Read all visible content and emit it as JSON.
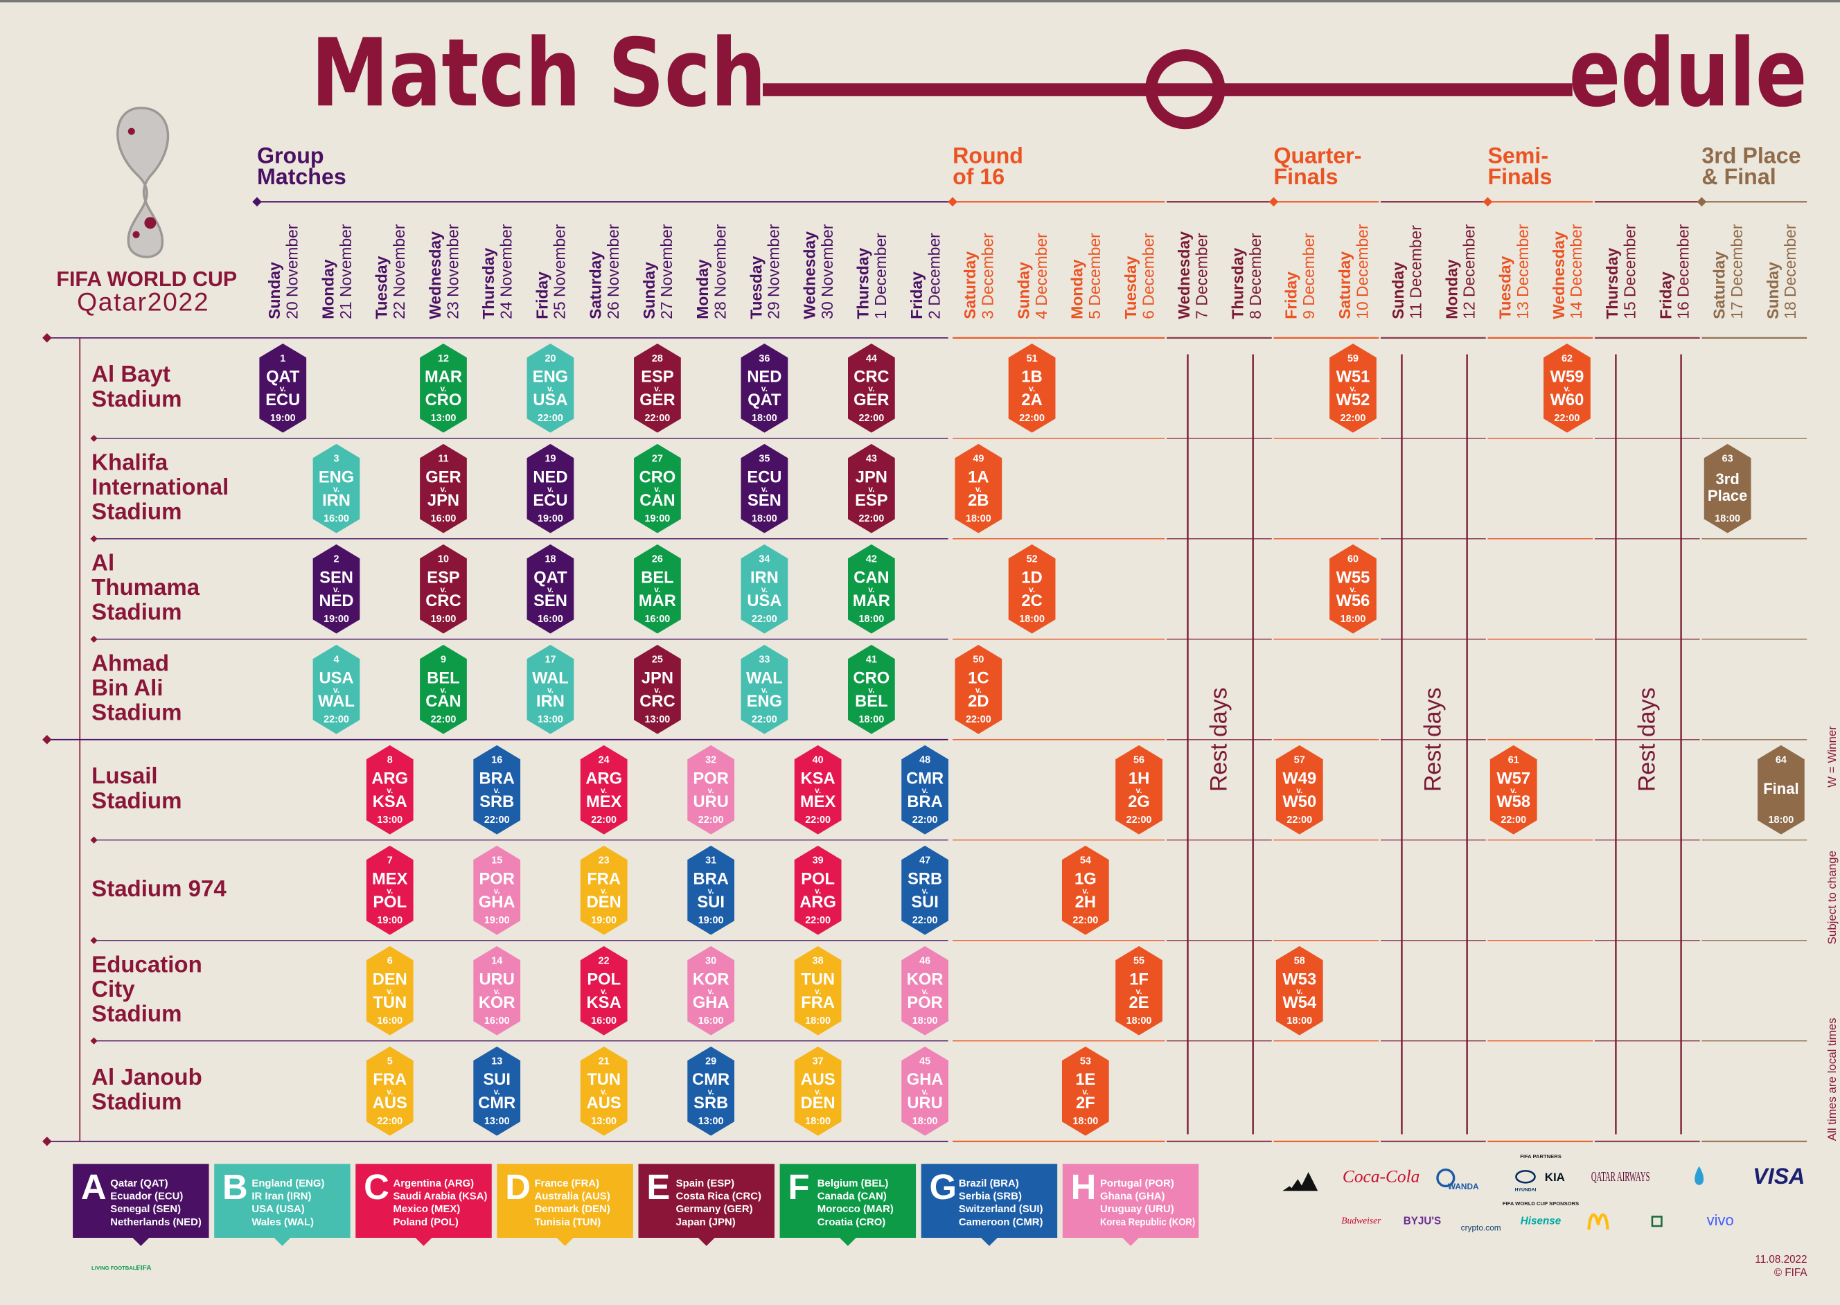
{
  "header": {
    "title_parts": [
      "Match Sch",
      "edule"
    ]
  },
  "logo": {
    "name": "FIFA WORLD CUP",
    "edition": "Qatar2022"
  },
  "vs_label": "v.",
  "column_groups": [
    {
      "title": [
        "Group",
        "Matches"
      ],
      "color": "#4a1063",
      "days": [
        {
          "day": "Sunday",
          "date": "20 November"
        },
        {
          "day": "Monday",
          "date": "21 November"
        },
        {
          "day": "Tuesday",
          "date": "22 November"
        },
        {
          "day": "Wednesday",
          "date": "23 November"
        },
        {
          "day": "Thursday",
          "date": "24 November"
        },
        {
          "day": "Friday",
          "date": "25 November"
        },
        {
          "day": "Saturday",
          "date": "26 November"
        },
        {
          "day": "Sunday",
          "date": "27 November"
        },
        {
          "day": "Monday",
          "date": "28 November"
        },
        {
          "day": "Tuesday",
          "date": "29 November"
        },
        {
          "day": "Wednesday",
          "date": "30 November"
        },
        {
          "day": "Thursday",
          "date": "1 December"
        },
        {
          "day": "Friday",
          "date": "2 December"
        }
      ]
    },
    {
      "title": [
        "Round",
        "of 16"
      ],
      "color": "#eb5323",
      "days": [
        {
          "day": "Saturday",
          "date": "3 December"
        },
        {
          "day": "Sunday",
          "date": "4 December"
        },
        {
          "day": "Monday",
          "date": "5 December"
        },
        {
          "day": "Tuesday",
          "date": "6 December"
        }
      ]
    },
    {
      "rest": "Rest days",
      "color": "#7a1a35",
      "days": [
        {
          "day": "Wednesday",
          "date": "7 December"
        },
        {
          "day": "Thursday",
          "date": "8 December"
        }
      ]
    },
    {
      "title": [
        "Quarter-",
        "Finals"
      ],
      "color": "#eb5323",
      "days": [
        {
          "day": "Friday",
          "date": "9 December"
        },
        {
          "day": "Saturday",
          "date": "10 December"
        }
      ]
    },
    {
      "rest": "Rest days",
      "color": "#7a1a35",
      "days": [
        {
          "day": "Sunday",
          "date": "11 December"
        },
        {
          "day": "Monday",
          "date": "12 December"
        }
      ]
    },
    {
      "title": [
        "Semi-",
        "Finals"
      ],
      "color": "#eb5323",
      "days": [
        {
          "day": "Tuesday",
          "date": "13 December"
        },
        {
          "day": "Wednesday",
          "date": "14 December"
        }
      ]
    },
    {
      "rest": "Rest days",
      "color": "#7a1a35",
      "days": [
        {
          "day": "Thursday",
          "date": "15 December"
        },
        {
          "day": "Friday",
          "date": "16 December"
        }
      ]
    },
    {
      "title": [
        "3rd Place",
        "& Final"
      ],
      "color": "#8f6b4a",
      "days": [
        {
          "day": "Saturday",
          "date": "17 December"
        },
        {
          "day": "Sunday",
          "date": "18 December"
        }
      ]
    }
  ],
  "stadiums": [
    {
      "name": [
        "Al Bayt",
        "Stadium"
      ],
      "matches": [
        {
          "number": 1,
          "teams": [
            "QAT",
            "ECU"
          ],
          "time": "19:00",
          "color": "#4a1063"
        },
        null,
        null,
        {
          "number": 12,
          "teams": [
            "MAR",
            "CRO"
          ],
          "time": "13:00",
          "color": "#0d9b48"
        },
        null,
        {
          "number": 20,
          "teams": [
            "ENG",
            "USA"
          ],
          "time": "22:00",
          "color": "#47bfb0"
        },
        null,
        {
          "number": 28,
          "teams": [
            "ESP",
            "GER"
          ],
          "time": "22:00",
          "color": "#8a1538"
        },
        null,
        {
          "number": 36,
          "teams": [
            "NED",
            "QAT"
          ],
          "time": "18:00",
          "color": "#4a1063"
        },
        null,
        {
          "number": 44,
          "teams": [
            "CRC",
            "GER"
          ],
          "time": "22:00",
          "color": "#8a1538"
        },
        null,
        null,
        {
          "number": 51,
          "teams": [
            "1B",
            "2A"
          ],
          "time": "22:00",
          "color": "#eb5323"
        },
        null,
        null,
        null,
        null,
        null,
        {
          "number": 59,
          "teams": [
            "W51",
            "W52"
          ],
          "time": "22:00",
          "color": "#eb5323"
        },
        null,
        null,
        null,
        {
          "number": 62,
          "teams": [
            "W59",
            "W60"
          ],
          "time": "22:00",
          "color": "#eb5323"
        },
        null,
        null,
        null,
        null
      ]
    },
    {
      "name": [
        "Khalifa",
        "International",
        "Stadium"
      ],
      "matches": [
        null,
        {
          "number": 3,
          "teams": [
            "ENG",
            "IRN"
          ],
          "time": "16:00",
          "color": "#47bfb0"
        },
        null,
        {
          "number": 11,
          "teams": [
            "GER",
            "JPN"
          ],
          "time": "16:00",
          "color": "#8a1538"
        },
        null,
        {
          "number": 19,
          "teams": [
            "NED",
            "ECU"
          ],
          "time": "19:00",
          "color": "#4a1063"
        },
        null,
        {
          "number": 27,
          "teams": [
            "CRO",
            "CAN"
          ],
          "time": "19:00",
          "color": "#0d9b48"
        },
        null,
        {
          "number": 35,
          "teams": [
            "ECU",
            "SEN"
          ],
          "time": "18:00",
          "color": "#4a1063"
        },
        null,
        {
          "number": 43,
          "teams": [
            "JPN",
            "ESP"
          ],
          "time": "22:00",
          "color": "#8a1538"
        },
        null,
        {
          "number": 49,
          "teams": [
            "1A",
            "2B"
          ],
          "time": "18:00",
          "color": "#eb5323"
        },
        null,
        null,
        null,
        null,
        null,
        null,
        null,
        null,
        null,
        null,
        null,
        null,
        null,
        {
          "number": 63,
          "label": [
            "3rd",
            "Place"
          ],
          "time": "18:00",
          "color": "#8f6b4a"
        },
        null
      ]
    },
    {
      "name": [
        "Al",
        "Thumama",
        "Stadium"
      ],
      "matches": [
        null,
        {
          "number": 2,
          "teams": [
            "SEN",
            "NED"
          ],
          "time": "19:00",
          "color": "#4a1063"
        },
        null,
        {
          "number": 10,
          "teams": [
            "ESP",
            "CRC"
          ],
          "time": "19:00",
          "color": "#8a1538"
        },
        null,
        {
          "number": 18,
          "teams": [
            "QAT",
            "SEN"
          ],
          "time": "16:00",
          "color": "#4a1063"
        },
        null,
        {
          "number": 26,
          "teams": [
            "BEL",
            "MAR"
          ],
          "time": "16:00",
          "color": "#0d9b48"
        },
        null,
        {
          "number": 34,
          "teams": [
            "IRN",
            "USA"
          ],
          "time": "22:00",
          "color": "#47bfb0"
        },
        null,
        {
          "number": 42,
          "teams": [
            "CAN",
            "MAR"
          ],
          "time": "18:00",
          "color": "#0d9b48"
        },
        null,
        null,
        {
          "number": 52,
          "teams": [
            "1D",
            "2C"
          ],
          "time": "18:00",
          "color": "#eb5323"
        },
        null,
        null,
        null,
        null,
        null,
        {
          "number": 60,
          "teams": [
            "W55",
            "W56"
          ],
          "time": "18:00",
          "color": "#eb5323"
        },
        null,
        null,
        null,
        null,
        null,
        null,
        null,
        null
      ]
    },
    {
      "name": [
        "Ahmad",
        "Bin Ali",
        "Stadium"
      ],
      "matches": [
        null,
        {
          "number": 4,
          "teams": [
            "USA",
            "WAL"
          ],
          "time": "22:00",
          "color": "#47bfb0"
        },
        null,
        {
          "number": 9,
          "teams": [
            "BEL",
            "CAN"
          ],
          "time": "22:00",
          "color": "#0d9b48"
        },
        null,
        {
          "number": 17,
          "teams": [
            "WAL",
            "IRN"
          ],
          "time": "13:00",
          "color": "#47bfb0"
        },
        null,
        {
          "number": 25,
          "teams": [
            "JPN",
            "CRC"
          ],
          "time": "13:00",
          "color": "#8a1538"
        },
        null,
        {
          "number": 33,
          "teams": [
            "WAL",
            "ENG"
          ],
          "time": "22:00",
          "color": "#47bfb0"
        },
        null,
        {
          "number": 41,
          "teams": [
            "CRO",
            "BEL"
          ],
          "time": "18:00",
          "color": "#0d9b48"
        },
        null,
        {
          "number": 50,
          "teams": [
            "1C",
            "2D"
          ],
          "time": "22:00",
          "color": "#eb5323"
        },
        null,
        null,
        null,
        null,
        null,
        null,
        null,
        null,
        null,
        null,
        null,
        null,
        null,
        null,
        null
      ]
    },
    {
      "name": [
        "Lusail",
        "Stadium"
      ],
      "matches": [
        null,
        null,
        {
          "number": 8,
          "teams": [
            "ARG",
            "KSA"
          ],
          "time": "13:00",
          "color": "#e4174f"
        },
        null,
        {
          "number": 16,
          "teams": [
            "BRA",
            "SRB"
          ],
          "time": "22:00",
          "color": "#1d5ea9"
        },
        null,
        {
          "number": 24,
          "teams": [
            "ARG",
            "MEX"
          ],
          "time": "22:00",
          "color": "#e4174f"
        },
        null,
        {
          "number": 32,
          "teams": [
            "POR",
            "URU"
          ],
          "time": "22:00",
          "color": "#ef83b5"
        },
        null,
        {
          "number": 40,
          "teams": [
            "KSA",
            "MEX"
          ],
          "time": "22:00",
          "color": "#e4174f"
        },
        null,
        {
          "number": 48,
          "teams": [
            "CMR",
            "BRA"
          ],
          "time": "22:00",
          "color": "#1d5ea9"
        },
        null,
        null,
        null,
        {
          "number": 56,
          "teams": [
            "1H",
            "2G"
          ],
          "time": "22:00",
          "color": "#eb5323"
        },
        null,
        null,
        {
          "number": 57,
          "teams": [
            "W49",
            "W50"
          ],
          "time": "22:00",
          "color": "#eb5323"
        },
        null,
        null,
        null,
        {
          "number": 61,
          "teams": [
            "W57",
            "W58"
          ],
          "time": "22:00",
          "color": "#eb5323"
        },
        null,
        null,
        null,
        null,
        {
          "number": 64,
          "label": [
            "Final"
          ],
          "time": "18:00",
          "color": "#8f6b4a"
        }
      ]
    },
    {
      "name": [
        "Stadium 974"
      ],
      "matches": [
        null,
        null,
        {
          "number": 7,
          "teams": [
            "MEX",
            "POL"
          ],
          "time": "19:00",
          "color": "#e4174f"
        },
        null,
        {
          "number": 15,
          "teams": [
            "POR",
            "GHA"
          ],
          "time": "19:00",
          "color": "#ef83b5"
        },
        null,
        {
          "number": 23,
          "teams": [
            "FRA",
            "DEN"
          ],
          "time": "19:00",
          "color": "#f5b51b"
        },
        null,
        {
          "number": 31,
          "teams": [
            "BRA",
            "SUI"
          ],
          "time": "19:00",
          "color": "#1d5ea9"
        },
        null,
        {
          "number": 39,
          "teams": [
            "POL",
            "ARG"
          ],
          "time": "22:00",
          "color": "#e4174f"
        },
        null,
        {
          "number": 47,
          "teams": [
            "SRB",
            "SUI"
          ],
          "time": "22:00",
          "color": "#1d5ea9"
        },
        null,
        null,
        {
          "number": 54,
          "teams": [
            "1G",
            "2H"
          ],
          "time": "22:00",
          "color": "#eb5323"
        },
        null,
        null,
        null,
        null,
        null,
        null,
        null,
        null,
        null,
        null,
        null,
        null,
        null
      ]
    },
    {
      "name": [
        "Education",
        "City",
        "Stadium"
      ],
      "matches": [
        null,
        null,
        {
          "number": 6,
          "teams": [
            "DEN",
            "TUN"
          ],
          "time": "16:00",
          "color": "#f5b51b"
        },
        null,
        {
          "number": 14,
          "teams": [
            "URU",
            "KOR"
          ],
          "time": "16:00",
          "color": "#ef83b5"
        },
        null,
        {
          "number": 22,
          "teams": [
            "POL",
            "KSA"
          ],
          "time": "16:00",
          "color": "#e4174f"
        },
        null,
        {
          "number": 30,
          "teams": [
            "KOR",
            "GHA"
          ],
          "time": "16:00",
          "color": "#ef83b5"
        },
        null,
        {
          "number": 38,
          "teams": [
            "TUN",
            "FRA"
          ],
          "time": "18:00",
          "color": "#f5b51b"
        },
        null,
        {
          "number": 46,
          "teams": [
            "KOR",
            "POR"
          ],
          "time": "18:00",
          "color": "#ef83b5"
        },
        null,
        null,
        null,
        {
          "number": 55,
          "teams": [
            "1F",
            "2E"
          ],
          "time": "18:00",
          "color": "#eb5323"
        },
        null,
        null,
        {
          "number": 58,
          "teams": [
            "W53",
            "W54"
          ],
          "time": "18:00",
          "color": "#eb5323"
        },
        null,
        null,
        null,
        null,
        null,
        null,
        null,
        null,
        null
      ]
    },
    {
      "name": [
        "Al Janoub",
        "Stadium"
      ],
      "matches": [
        null,
        null,
        {
          "number": 5,
          "teams": [
            "FRA",
            "AUS"
          ],
          "time": "22:00",
          "color": "#f5b51b"
        },
        null,
        {
          "number": 13,
          "teams": [
            "SUI",
            "CMR"
          ],
          "time": "13:00",
          "color": "#1d5ea9"
        },
        null,
        {
          "number": 21,
          "teams": [
            "TUN",
            "AUS"
          ],
          "time": "13:00",
          "color": "#f5b51b"
        },
        null,
        {
          "number": 29,
          "teams": [
            "CMR",
            "SRB"
          ],
          "time": "13:00",
          "color": "#1d5ea9"
        },
        null,
        {
          "number": 37,
          "teams": [
            "AUS",
            "DEN"
          ],
          "time": "18:00",
          "color": "#f5b51b"
        },
        null,
        {
          "number": 45,
          "teams": [
            "GHA",
            "URU"
          ],
          "time": "18:00",
          "color": "#ef83b5"
        },
        null,
        null,
        {
          "number": 53,
          "teams": [
            "1E",
            "2F"
          ],
          "time": "18:00",
          "color": "#eb5323"
        },
        null,
        null,
        null,
        null,
        null,
        null,
        null,
        null,
        null,
        null,
        null,
        null,
        null
      ]
    }
  ],
  "groups": [
    {
      "letter": "A",
      "color": "#4a1063",
      "teams": [
        "Qatar (QAT)",
        "Ecuador (ECU)",
        "Senegal (SEN)",
        "Netherlands (NED)"
      ]
    },
    {
      "letter": "B",
      "color": "#47bfb0",
      "teams": [
        "England (ENG)",
        "IR Iran (IRN)",
        "USA (USA)",
        "Wales (WAL)"
      ]
    },
    {
      "letter": "C",
      "color": "#e4174f",
      "teams": [
        "Argentina (ARG)",
        "Saudi Arabia (KSA)",
        "Mexico (MEX)",
        "Poland (POL)"
      ]
    },
    {
      "letter": "D",
      "color": "#f5b51b",
      "teams": [
        "France (FRA)",
        "Australia (AUS)",
        "Denmark (DEN)",
        "Tunisia (TUN)"
      ]
    },
    {
      "letter": "E",
      "color": "#8a1538",
      "teams": [
        "Spain (ESP)",
        "Costa Rica (CRC)",
        "Germany (GER)",
        "Japan (JPN)"
      ]
    },
    {
      "letter": "F",
      "color": "#0d9b48",
      "teams": [
        "Belgium (BEL)",
        "Canada (CAN)",
        "Morocco (MAR)",
        "Croatia (CRO)"
      ]
    },
    {
      "letter": "G",
      "color": "#1d5ea9",
      "teams": [
        "Brazil (BRA)",
        "Serbia (SRB)",
        "Switzerland (SUI)",
        "Cameroon (CMR)"
      ]
    },
    {
      "letter": "H",
      "color": "#ef83b5",
      "teams": [
        "Portugal (POR)",
        "Ghana (GHA)",
        "Uruguay (URU)",
        "Korea Republic (KOR)"
      ]
    }
  ],
  "notes": [
    "W = Winner",
    "Subject to change",
    "All times are local times"
  ],
  "sponsors": {
    "partners_label": "FIFA PARTNERS",
    "partners": [
      "Coca-Cola",
      "WANDA",
      "HYUNDAI",
      "KIA",
      "QATAR AIRWAYS",
      "VISA"
    ],
    "sponsors_label": "FIFA WORLD CUP SPONSORS",
    "sponsors": [
      "Budweiser",
      "BYJU'S",
      "crypto.com",
      "Hisense",
      "vivo"
    ]
  },
  "footer": {
    "date": "11.08.2022",
    "copyright": "© FIFA",
    "living_football": "LIVING FOOTBALL",
    "fifa": "FIFA"
  }
}
